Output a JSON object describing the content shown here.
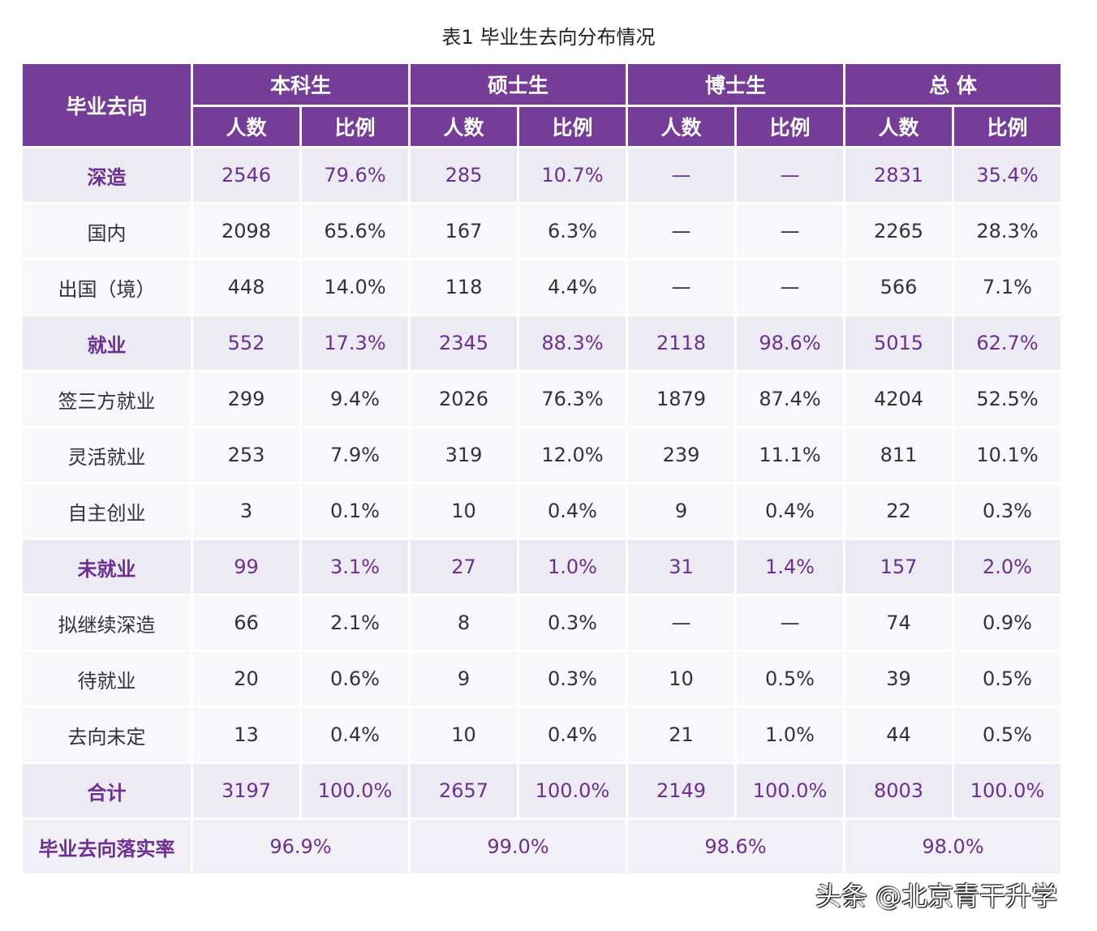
{
  "title": "表1  毕业生去向分布情况",
  "header": {
    "first": "毕业去向",
    "groups": [
      "本科生",
      "硕士生",
      "博士生",
      "总  体"
    ],
    "sub": [
      "人数",
      "比例"
    ]
  },
  "rows": [
    {
      "type": "cat",
      "label": "深造",
      "cells": [
        "2546",
        "79.6%",
        "285",
        "10.7%",
        "—",
        "—",
        "2831",
        "35.4%"
      ]
    },
    {
      "type": "sub",
      "label": "国内",
      "cells": [
        "2098",
        "65.6%",
        "167",
        "6.3%",
        "—",
        "—",
        "2265",
        "28.3%"
      ]
    },
    {
      "type": "sub",
      "label": "出国（境）",
      "cells": [
        "448",
        "14.0%",
        "118",
        "4.4%",
        "—",
        "—",
        "566",
        "7.1%"
      ]
    },
    {
      "type": "cat",
      "label": "就业",
      "cells": [
        "552",
        "17.3%",
        "2345",
        "88.3%",
        "2118",
        "98.6%",
        "5015",
        "62.7%"
      ]
    },
    {
      "type": "sub",
      "label": "签三方就业",
      "cells": [
        "299",
        "9.4%",
        "2026",
        "76.3%",
        "1879",
        "87.4%",
        "4204",
        "52.5%"
      ]
    },
    {
      "type": "sub",
      "label": "灵活就业",
      "cells": [
        "253",
        "7.9%",
        "319",
        "12.0%",
        "239",
        "11.1%",
        "811",
        "10.1%"
      ]
    },
    {
      "type": "sub",
      "label": "自主创业",
      "cells": [
        "3",
        "0.1%",
        "10",
        "0.4%",
        "9",
        "0.4%",
        "22",
        "0.3%"
      ]
    },
    {
      "type": "cat",
      "label": "未就业",
      "cells": [
        "99",
        "3.1%",
        "27",
        "1.0%",
        "31",
        "1.4%",
        "157",
        "2.0%"
      ]
    },
    {
      "type": "sub",
      "label": "拟继续深造",
      "cells": [
        "66",
        "2.1%",
        "8",
        "0.3%",
        "—",
        "—",
        "74",
        "0.9%"
      ]
    },
    {
      "type": "sub",
      "label": "待就业",
      "cells": [
        "20",
        "0.6%",
        "9",
        "0.3%",
        "10",
        "0.5%",
        "39",
        "0.5%"
      ]
    },
    {
      "type": "sub",
      "label": "去向未定",
      "cells": [
        "13",
        "0.4%",
        "10",
        "0.4%",
        "21",
        "1.0%",
        "44",
        "0.5%"
      ]
    },
    {
      "type": "cat",
      "label": "合计",
      "cells": [
        "3197",
        "100.0%",
        "2657",
        "100.0%",
        "2149",
        "100.0%",
        "8003",
        "100.0%"
      ]
    }
  ],
  "rate_row": {
    "label": "毕业去向落实率",
    "cells": [
      "96.9%",
      "99.0%",
      "98.6%",
      "98.0%"
    ]
  },
  "watermark": "头条 @北京青干升学",
  "colors": {
    "header": "#763d98",
    "category_text": "#6c2f92",
    "category_bg": "#ecebf3",
    "sub_bg": "#f8f8fa"
  }
}
